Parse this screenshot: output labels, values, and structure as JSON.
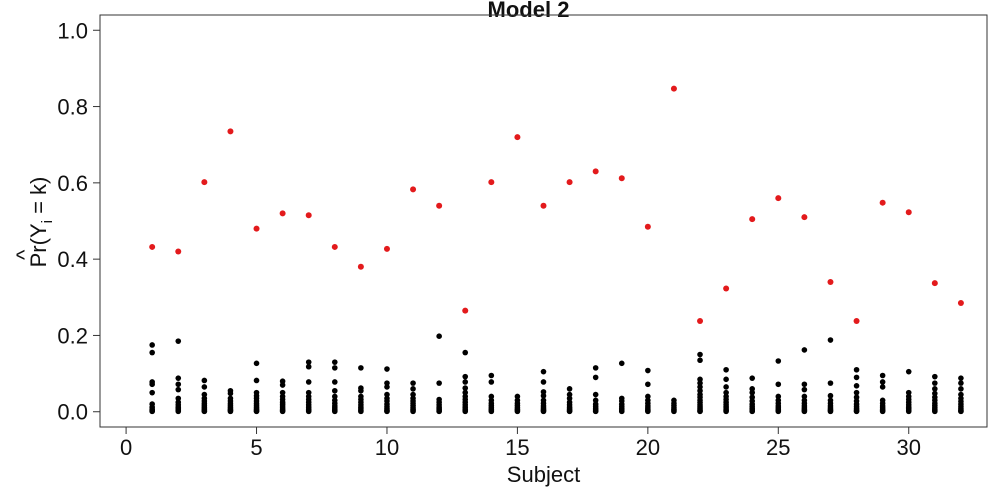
{
  "chart_data": {
    "type": "scatter",
    "title": "Model 2",
    "xlabel": "Subject",
    "ylabel_main": "Pr",
    "ylabel_hat": "^",
    "ylabel_open": "(Y",
    "ylabel_sub": "i",
    "ylabel_close": " = k)",
    "xlim": [
      -1,
      33
    ],
    "ylim": [
      -0.04,
      1.04
    ],
    "xticks": [
      0,
      5,
      10,
      15,
      20,
      25,
      30
    ],
    "xtick_labels": [
      "0",
      "5",
      "10",
      "15",
      "20",
      "25",
      "30"
    ],
    "yticks": [
      0.0,
      0.2,
      0.4,
      0.6,
      0.8,
      1.0
    ],
    "ytick_labels": [
      "0.0",
      "0.2",
      "0.4",
      "0.6",
      "0.8",
      "1.0"
    ],
    "grid": false,
    "colors": {
      "highlight": "#e31a1c",
      "other": "#000000"
    },
    "highlight": {
      "x": [
        1,
        2,
        3,
        4,
        5,
        6,
        7,
        8,
        9,
        10,
        11,
        12,
        13,
        14,
        15,
        16,
        17,
        18,
        19,
        20,
        21,
        22,
        23,
        24,
        25,
        26,
        27,
        28,
        29,
        30,
        31,
        32
      ],
      "y": [
        0.432,
        0.42,
        0.602,
        0.735,
        0.48,
        0.52,
        0.515,
        0.432,
        0.38,
        0.427,
        0.583,
        0.54,
        0.265,
        0.602,
        0.72,
        0.54,
        0.602,
        0.63,
        0.612,
        0.485,
        0.847,
        0.238,
        0.323,
        0.505,
        0.56,
        0.51,
        0.34,
        0.238,
        0.548,
        0.523,
        0.337,
        0.285
      ]
    },
    "others": [
      {
        "x": 1,
        "y": [
          0.175,
          0.155,
          0.078,
          0.072,
          0.05,
          0.02,
          0.012,
          0.007,
          0.004,
          0.002,
          0.001
        ]
      },
      {
        "x": 2,
        "y": [
          0.185,
          0.088,
          0.072,
          0.058,
          0.035,
          0.025,
          0.018,
          0.012,
          0.008,
          0.005,
          0.003,
          0.001
        ]
      },
      {
        "x": 3,
        "y": [
          0.082,
          0.065,
          0.045,
          0.035,
          0.028,
          0.022,
          0.017,
          0.012,
          0.008,
          0.005,
          0.002,
          0.001
        ]
      },
      {
        "x": 4,
        "y": [
          0.055,
          0.048,
          0.035,
          0.028,
          0.022,
          0.017,
          0.012,
          0.008,
          0.005,
          0.003,
          0.001
        ]
      },
      {
        "x": 5,
        "y": [
          0.127,
          0.082,
          0.05,
          0.042,
          0.035,
          0.028,
          0.022,
          0.017,
          0.012,
          0.008,
          0.005,
          0.002,
          0.001
        ]
      },
      {
        "x": 6,
        "y": [
          0.08,
          0.07,
          0.05,
          0.04,
          0.032,
          0.025,
          0.02,
          0.015,
          0.01,
          0.006,
          0.003,
          0.001
        ]
      },
      {
        "x": 7,
        "y": [
          0.13,
          0.118,
          0.078,
          0.05,
          0.04,
          0.032,
          0.025,
          0.018,
          0.012,
          0.007,
          0.003,
          0.001
        ]
      },
      {
        "x": 8,
        "y": [
          0.13,
          0.115,
          0.078,
          0.055,
          0.04,
          0.03,
          0.022,
          0.015,
          0.01,
          0.006,
          0.003,
          0.001
        ]
      },
      {
        "x": 9,
        "y": [
          0.115,
          0.062,
          0.055,
          0.04,
          0.032,
          0.025,
          0.018,
          0.012,
          0.008,
          0.004,
          0.001
        ]
      },
      {
        "x": 10,
        "y": [
          0.112,
          0.075,
          0.065,
          0.045,
          0.035,
          0.028,
          0.02,
          0.014,
          0.009,
          0.005,
          0.002,
          0.001
        ]
      },
      {
        "x": 11,
        "y": [
          0.075,
          0.06,
          0.045,
          0.035,
          0.028,
          0.022,
          0.016,
          0.011,
          0.007,
          0.004,
          0.001
        ]
      },
      {
        "x": 12,
        "y": [
          0.198,
          0.075,
          0.032,
          0.025,
          0.018,
          0.012,
          0.008,
          0.005,
          0.002,
          0.001
        ]
      },
      {
        "x": 13,
        "y": [
          0.155,
          0.092,
          0.078,
          0.062,
          0.05,
          0.04,
          0.032,
          0.025,
          0.018,
          0.012,
          0.007,
          0.003,
          0.001
        ]
      },
      {
        "x": 14,
        "y": [
          0.095,
          0.078,
          0.04,
          0.03,
          0.022,
          0.016,
          0.011,
          0.007,
          0.004,
          0.001
        ]
      },
      {
        "x": 15,
        "y": [
          0.04,
          0.03,
          0.022,
          0.016,
          0.011,
          0.007,
          0.004,
          0.001
        ]
      },
      {
        "x": 16,
        "y": [
          0.105,
          0.078,
          0.052,
          0.042,
          0.03,
          0.022,
          0.015,
          0.01,
          0.006,
          0.003,
          0.001
        ]
      },
      {
        "x": 17,
        "y": [
          0.06,
          0.045,
          0.035,
          0.025,
          0.018,
          0.012,
          0.008,
          0.005,
          0.002,
          0.001
        ]
      },
      {
        "x": 18,
        "y": [
          0.115,
          0.09,
          0.045,
          0.03,
          0.02,
          0.014,
          0.009,
          0.005,
          0.002,
          0.001
        ]
      },
      {
        "x": 19,
        "y": [
          0.127,
          0.035,
          0.028,
          0.02,
          0.014,
          0.009,
          0.005,
          0.002,
          0.001
        ]
      },
      {
        "x": 20,
        "y": [
          0.108,
          0.072,
          0.04,
          0.03,
          0.022,
          0.015,
          0.01,
          0.006,
          0.003,
          0.001
        ]
      },
      {
        "x": 21,
        "y": [
          0.03,
          0.022,
          0.016,
          0.011,
          0.007,
          0.004,
          0.001
        ]
      },
      {
        "x": 22,
        "y": [
          0.15,
          0.135,
          0.085,
          0.075,
          0.065,
          0.055,
          0.045,
          0.038,
          0.03,
          0.024,
          0.018,
          0.013,
          0.009,
          0.005,
          0.002,
          0.001
        ]
      },
      {
        "x": 23,
        "y": [
          0.11,
          0.085,
          0.065,
          0.05,
          0.04,
          0.032,
          0.025,
          0.019,
          0.014,
          0.01,
          0.006,
          0.003,
          0.001
        ]
      },
      {
        "x": 24,
        "y": [
          0.088,
          0.06,
          0.05,
          0.038,
          0.028,
          0.02,
          0.014,
          0.009,
          0.005,
          0.002,
          0.001
        ]
      },
      {
        "x": 25,
        "y": [
          0.133,
          0.072,
          0.04,
          0.03,
          0.022,
          0.015,
          0.01,
          0.006,
          0.003,
          0.001
        ]
      },
      {
        "x": 26,
        "y": [
          0.162,
          0.072,
          0.058,
          0.04,
          0.03,
          0.022,
          0.015,
          0.01,
          0.006,
          0.003,
          0.001
        ]
      },
      {
        "x": 27,
        "y": [
          0.188,
          0.075,
          0.042,
          0.03,
          0.022,
          0.015,
          0.01,
          0.006,
          0.003,
          0.001
        ]
      },
      {
        "x": 28,
        "y": [
          0.11,
          0.09,
          0.068,
          0.05,
          0.038,
          0.028,
          0.02,
          0.014,
          0.009,
          0.005,
          0.002,
          0.001
        ]
      },
      {
        "x": 29,
        "y": [
          0.095,
          0.078,
          0.065,
          0.03,
          0.022,
          0.015,
          0.01,
          0.006,
          0.003,
          0.001
        ]
      },
      {
        "x": 30,
        "y": [
          0.105,
          0.05,
          0.04,
          0.032,
          0.025,
          0.018,
          0.012,
          0.008,
          0.004,
          0.001
        ]
      },
      {
        "x": 31,
        "y": [
          0.092,
          0.075,
          0.06,
          0.048,
          0.038,
          0.03,
          0.022,
          0.016,
          0.011,
          0.007,
          0.003,
          0.001
        ]
      },
      {
        "x": 32,
        "y": [
          0.088,
          0.075,
          0.06,
          0.045,
          0.035,
          0.027,
          0.02,
          0.014,
          0.009,
          0.005,
          0.002,
          0.001
        ]
      }
    ]
  }
}
